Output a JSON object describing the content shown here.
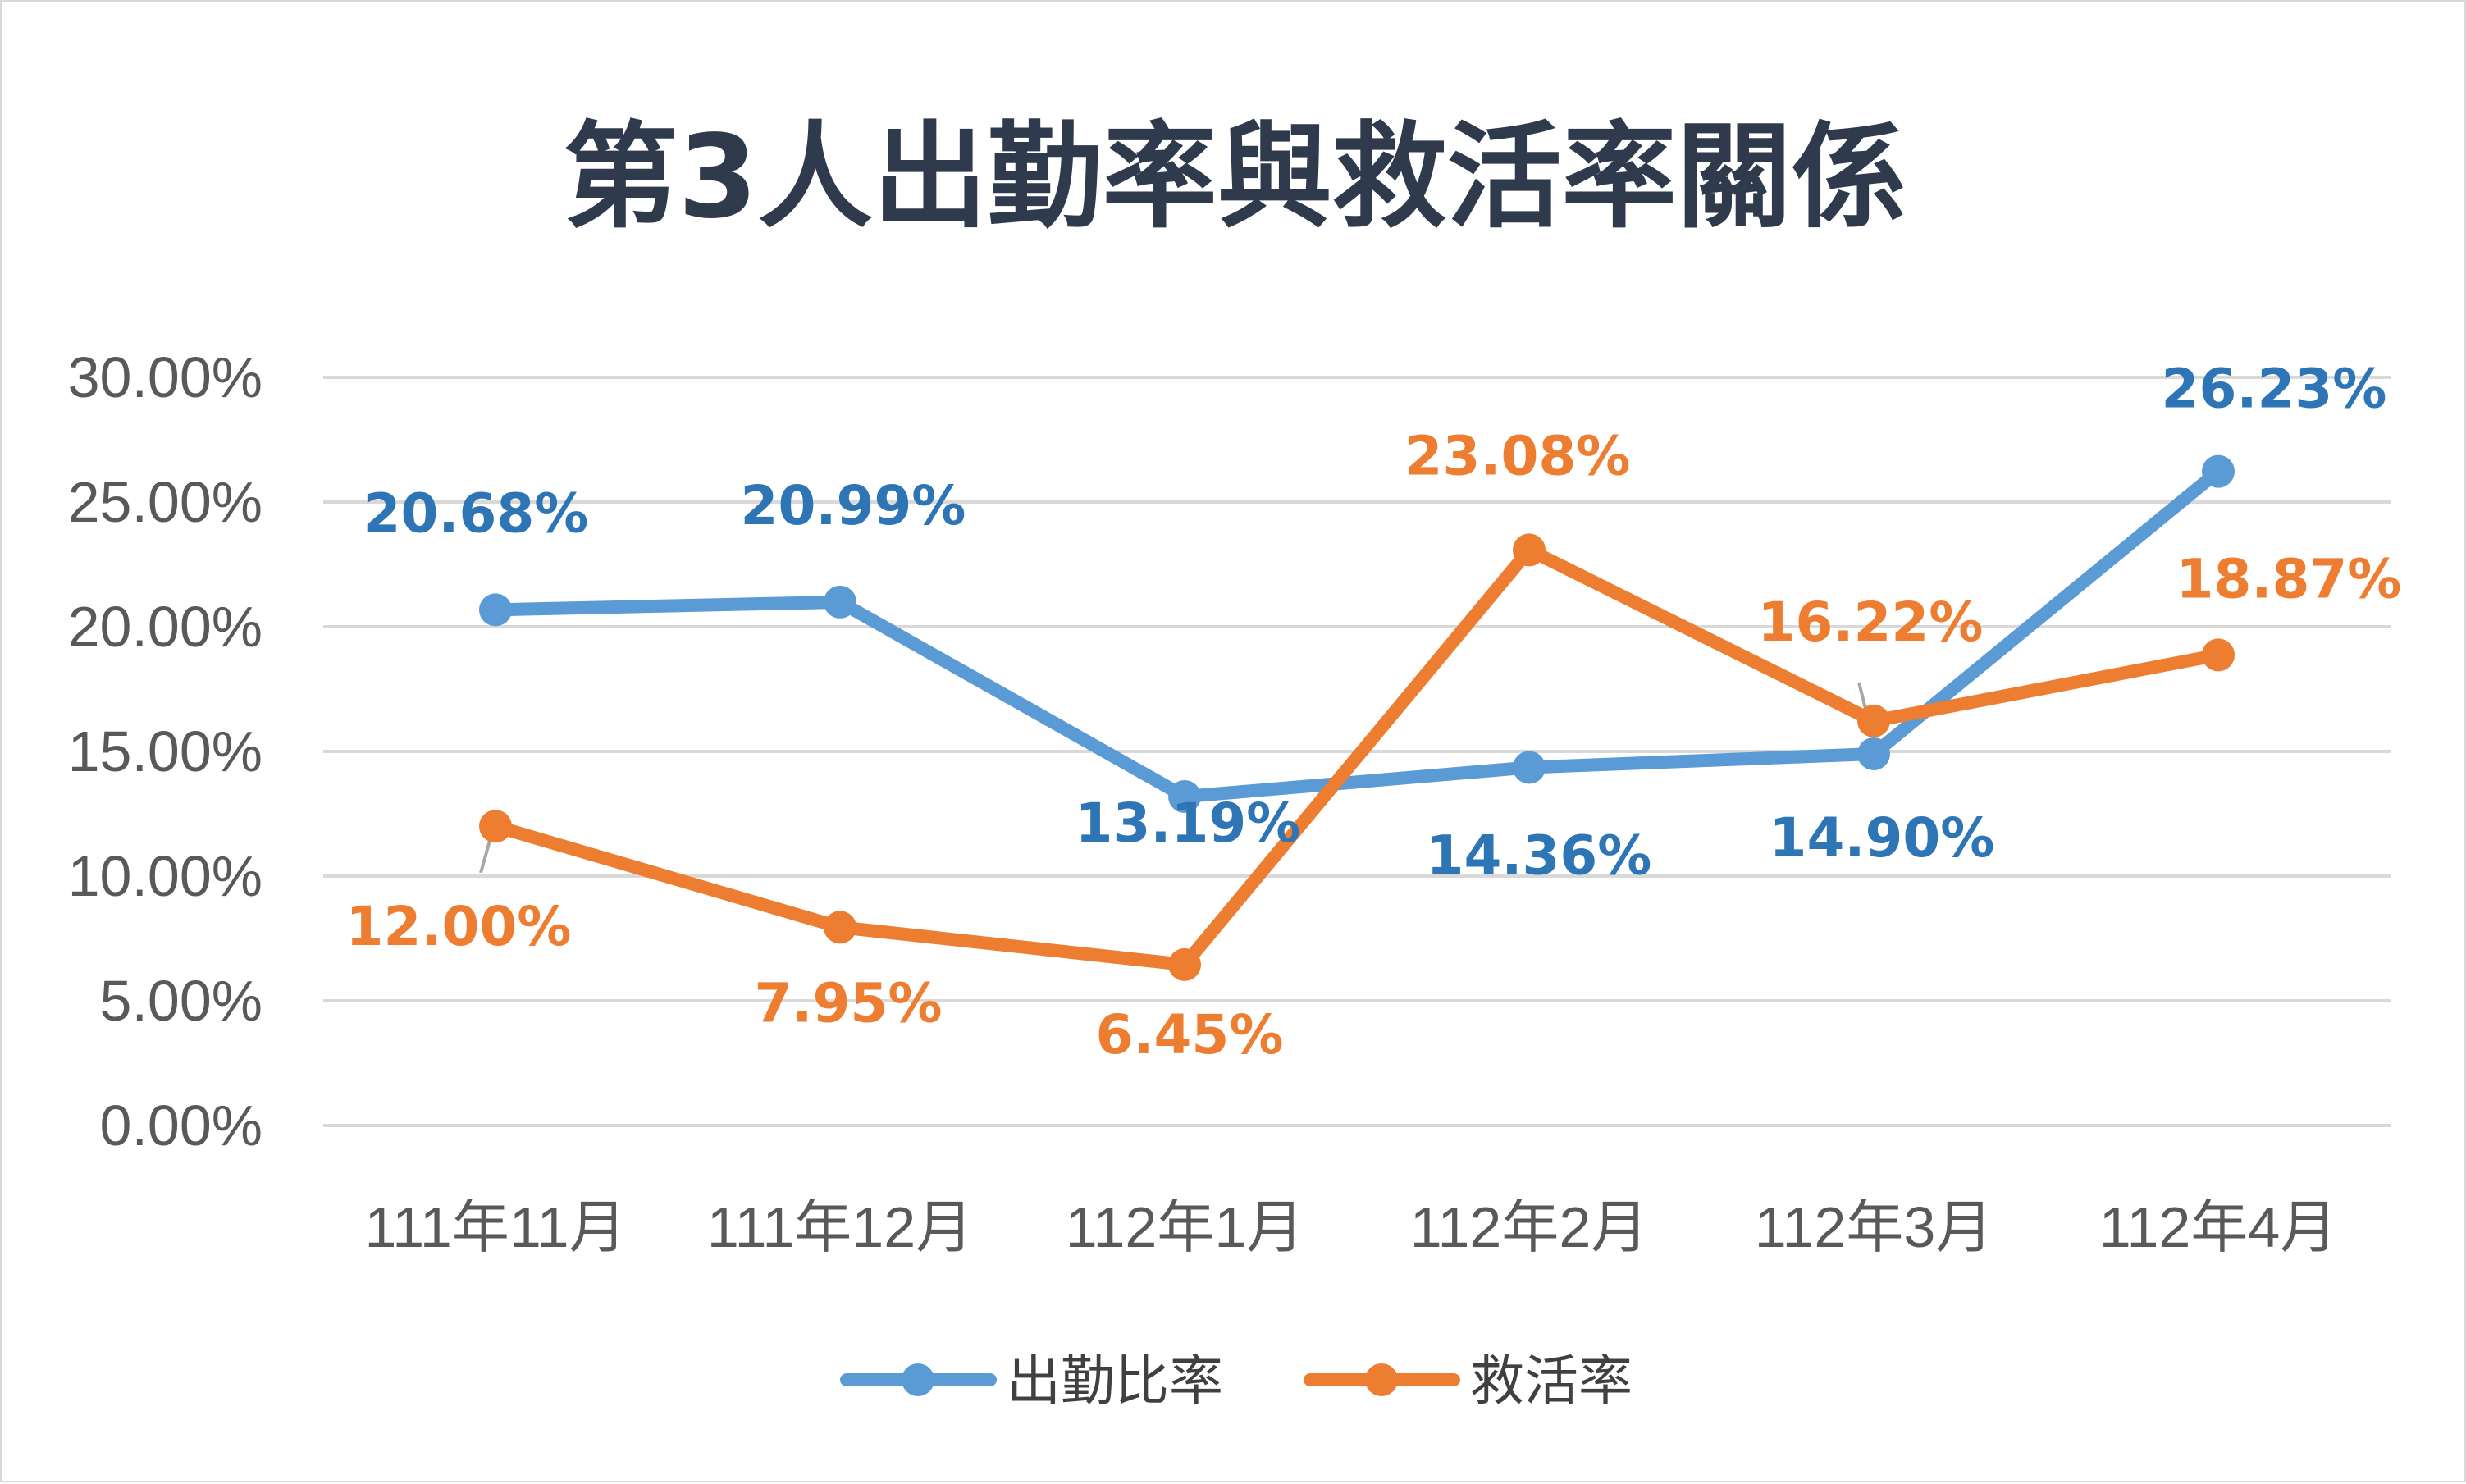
{
  "chart_data": {
    "type": "line",
    "title": "第3人出勤率與救活率關係",
    "xlabel": "",
    "ylabel": "",
    "categories": [
      "111年11月",
      "111年12月",
      "112年1月",
      "112年2月",
      "112年3月",
      "112年4月"
    ],
    "ylim": [
      0,
      30
    ],
    "y_ticks": [
      "0.00%",
      "5.00%",
      "10.00%",
      "15.00%",
      "20.00%",
      "25.00%",
      "30.00%"
    ],
    "y_tick_values": [
      0,
      5,
      10,
      15,
      20,
      25,
      30
    ],
    "grid": true,
    "legend_position": "bottom",
    "series": [
      {
        "name": "出勤比率",
        "color": "#5b9bd5",
        "label_color": "#2e75b6",
        "values": [
          20.68,
          20.99,
          13.19,
          14.36,
          14.9,
          26.23
        ],
        "labels": [
          "20.68%",
          "20.99%",
          "13.19%",
          "14.36%",
          "14.90%",
          "26.23%"
        ]
      },
      {
        "name": "救活率",
        "color": "#ed7d31",
        "label_color": "#ed7d31",
        "values": [
          12.0,
          7.95,
          6.45,
          23.08,
          16.22,
          18.87
        ],
        "labels": [
          "12.00%",
          "7.95%",
          "6.45%",
          "23.08%",
          "16.22%",
          "18.87%"
        ]
      }
    ]
  }
}
